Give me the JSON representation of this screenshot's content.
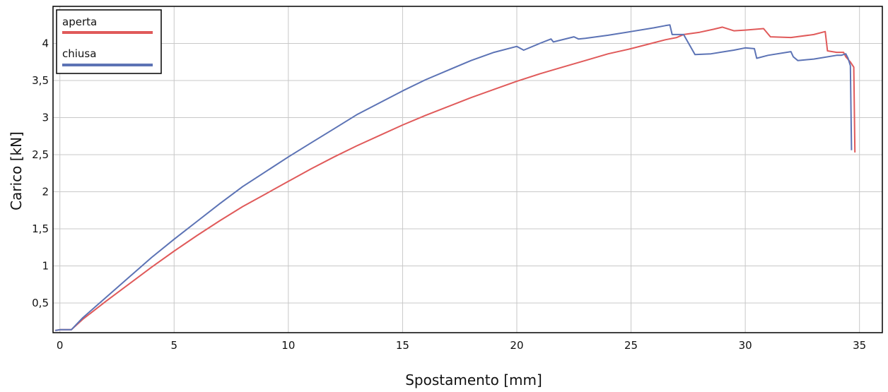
{
  "chart_data": {
    "type": "line",
    "title": "",
    "xlabel": "Spostamento [mm]",
    "ylabel": "Carico [kN]",
    "xlim": [
      -0.3,
      36
    ],
    "ylim": [
      0.1,
      4.5
    ],
    "x_ticks": [
      {
        "value": 0,
        "label": "0"
      },
      {
        "value": 5,
        "label": "5"
      },
      {
        "value": 10,
        "label": "10"
      },
      {
        "value": 15,
        "label": "15"
      },
      {
        "value": 20,
        "label": "20"
      },
      {
        "value": 25,
        "label": "25"
      },
      {
        "value": 30,
        "label": "30"
      },
      {
        "value": 35,
        "label": "35"
      }
    ],
    "y_ticks": [
      {
        "value": 0.5,
        "label": "0,5"
      },
      {
        "value": 1,
        "label": "1"
      },
      {
        "value": 1.5,
        "label": "1,5"
      },
      {
        "value": 2,
        "label": "2"
      },
      {
        "value": 2.5,
        "label": "2,5"
      },
      {
        "value": 3,
        "label": "3"
      },
      {
        "value": 3.5,
        "label": "3,5"
      },
      {
        "value": 4,
        "label": "4"
      }
    ],
    "grid": true,
    "legend_position": "top-left",
    "series": [
      {
        "name": "aperta",
        "color": "#e05a5a",
        "x": [
          -0.2,
          0.0,
          0.5,
          1,
          2,
          3,
          4,
          5,
          6,
          7,
          8,
          9,
          10,
          11,
          12,
          13,
          14,
          15,
          16,
          17,
          18,
          19,
          20,
          21,
          22,
          23,
          24,
          25,
          26,
          26.5,
          27.0,
          27.3,
          28.0,
          28.6,
          29.0,
          29.5,
          30.0,
          30.8,
          31.1,
          32.0,
          33.0,
          33.5,
          33.6,
          34.0,
          34.3,
          34.4,
          34.6,
          34.75,
          34.8
        ],
        "y": [
          0.13,
          0.14,
          0.14,
          0.28,
          0.52,
          0.75,
          0.98,
          1.2,
          1.41,
          1.61,
          1.8,
          1.97,
          2.14,
          2.31,
          2.47,
          2.62,
          2.76,
          2.9,
          3.03,
          3.15,
          3.27,
          3.38,
          3.49,
          3.59,
          3.68,
          3.77,
          3.86,
          3.93,
          4.01,
          4.05,
          4.08,
          4.12,
          4.15,
          4.19,
          4.22,
          4.17,
          4.18,
          4.2,
          4.09,
          4.08,
          4.12,
          4.16,
          3.9,
          3.88,
          3.88,
          3.82,
          3.75,
          3.68,
          2.53
        ]
      },
      {
        "name": "chiusa",
        "color": "#5c73b5",
        "x": [
          -0.2,
          0.0,
          0.5,
          1,
          2,
          3,
          4,
          5,
          6,
          7,
          8,
          9,
          10,
          11,
          12,
          13,
          14,
          15,
          16,
          17,
          18,
          19,
          20,
          20.3,
          21,
          21.5,
          21.6,
          22.5,
          22.7,
          23.0,
          24,
          25,
          26,
          26.5,
          26.7,
          26.8,
          27.3,
          27.8,
          28.5,
          29.5,
          30.0,
          30.4,
          30.5,
          31.0,
          32.0,
          32.1,
          32.3,
          33.0,
          34.0,
          34.2,
          34.4,
          34.5,
          34.6,
          34.65
        ],
        "y": [
          0.13,
          0.14,
          0.14,
          0.3,
          0.57,
          0.84,
          1.11,
          1.36,
          1.6,
          1.84,
          2.07,
          2.27,
          2.47,
          2.66,
          2.85,
          3.04,
          3.2,
          3.36,
          3.51,
          3.64,
          3.77,
          3.88,
          3.96,
          3.91,
          4.0,
          4.06,
          4.02,
          4.09,
          4.06,
          4.07,
          4.11,
          4.16,
          4.21,
          4.24,
          4.25,
          4.12,
          4.12,
          3.85,
          3.86,
          3.91,
          3.94,
          3.93,
          3.8,
          3.84,
          3.89,
          3.82,
          3.77,
          3.79,
          3.84,
          3.84,
          3.86,
          3.8,
          3.7,
          2.56
        ]
      }
    ]
  }
}
